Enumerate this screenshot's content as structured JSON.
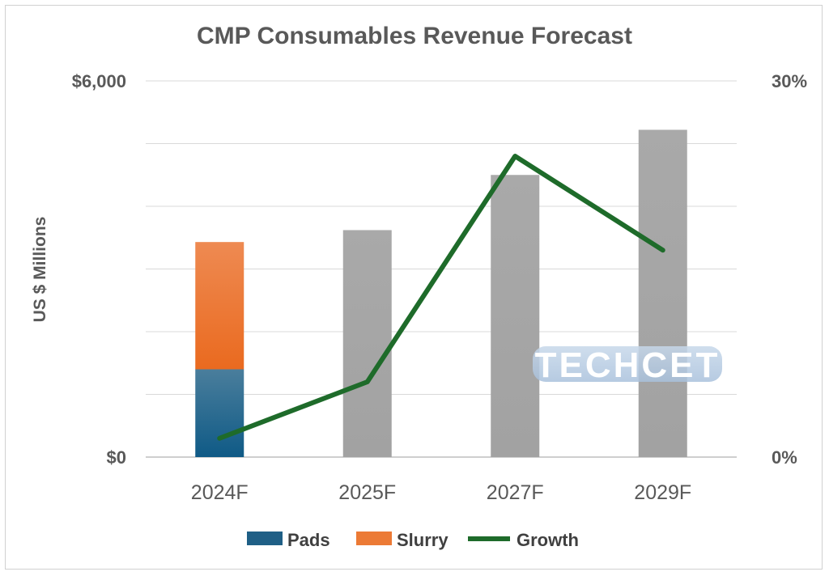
{
  "chart_data": {
    "type": "bar",
    "title": "CMP Consumables Revenue Forecast",
    "ylabel": "US $ Millions",
    "y2label": "",
    "categories": [
      "2024F",
      "2025F",
      "2027F",
      "2029F"
    ],
    "ylim": [
      0,
      6000
    ],
    "y2lim": [
      0,
      30
    ],
    "y_tick_labels": [
      "$6,000",
      "$0"
    ],
    "y2_tick_labels": [
      "30%",
      "0%"
    ],
    "gridlines": true,
    "series": [
      {
        "name": "Pads",
        "kind": "bar-stacked",
        "color": "#1f5f86",
        "values": [
          1400,
          null,
          null,
          null
        ]
      },
      {
        "name": "Slurry",
        "kind": "bar-stacked",
        "color": "#ec7a35",
        "values": [
          2030,
          null,
          null,
          null
        ]
      },
      {
        "name": "",
        "kind": "bar-total",
        "color": "#a6a6a6",
        "values": [
          null,
          3620,
          4500,
          5220
        ]
      },
      {
        "name": "Growth",
        "kind": "line",
        "axis": "secondary",
        "color": "#1e6b2a",
        "values": [
          1.5,
          6.0,
          24.0,
          16.5
        ]
      }
    ],
    "legend": [
      "Pads",
      "Slurry",
      "Growth"
    ],
    "legend_position": "bottom",
    "watermark": "TECHCET"
  }
}
